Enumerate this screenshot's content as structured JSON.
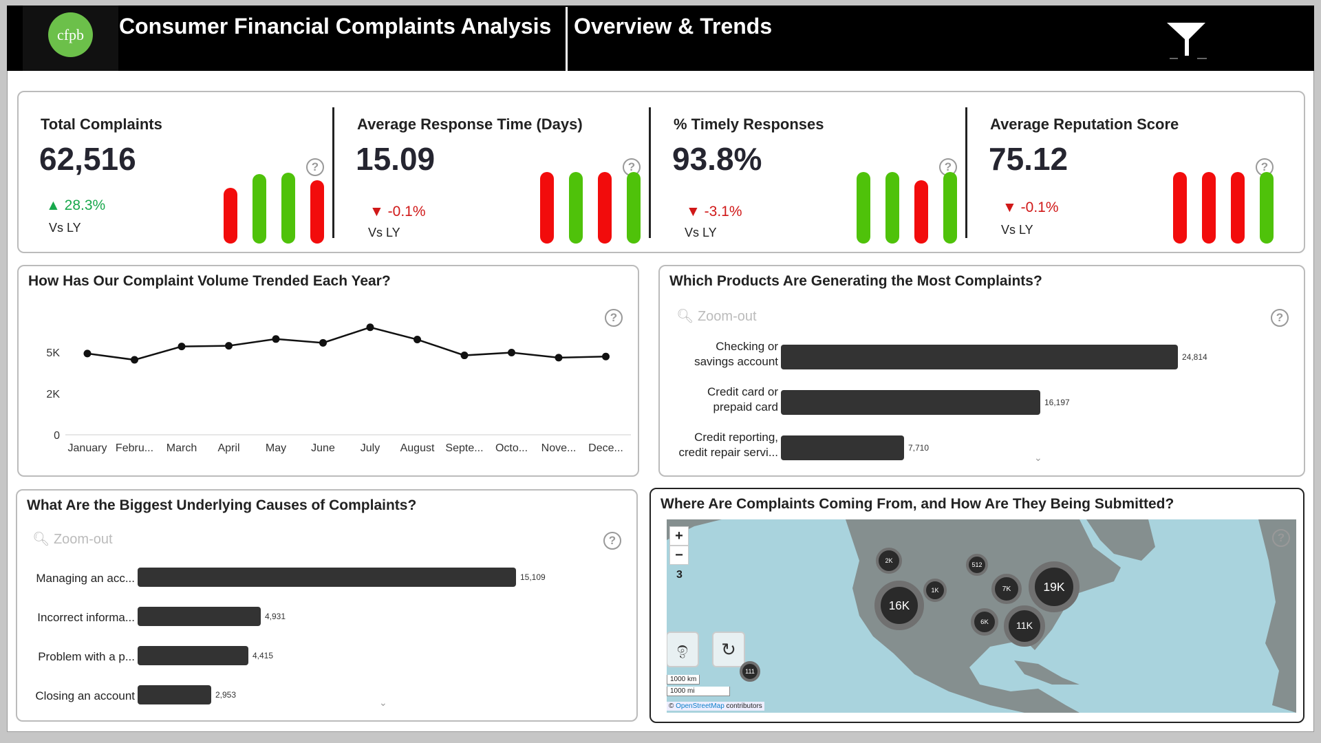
{
  "header": {
    "logo_text": "cfpb",
    "title": "Consumer Financial Complaints Analysis",
    "page": "Overview & Trends",
    "filter_icon": "funnel-icon"
  },
  "kpis": [
    {
      "title": "Total Complaints",
      "value": "62,516",
      "delta": "28.3%",
      "direction": "up",
      "compare": "Vs LY",
      "bars": [
        {
          "level": 0.72,
          "status": "red"
        },
        {
          "level": 0.9,
          "status": "green"
        },
        {
          "level": 0.92,
          "status": "green"
        },
        {
          "level": 0.82,
          "status": "red"
        }
      ]
    },
    {
      "title": "Average Response Time (Days)",
      "value": "15.09",
      "delta": "-0.1%",
      "direction": "down",
      "compare": "Vs LY",
      "bars": [
        {
          "level": 0.93,
          "status": "red"
        },
        {
          "level": 0.93,
          "status": "green"
        },
        {
          "level": 0.93,
          "status": "red"
        },
        {
          "level": 0.93,
          "status": "green"
        }
      ]
    },
    {
      "title": "% Timely Responses",
      "value": "93.8%",
      "delta": "-3.1%",
      "direction": "down",
      "compare": "Vs LY",
      "bars": [
        {
          "level": 0.93,
          "status": "green"
        },
        {
          "level": 0.93,
          "status": "green"
        },
        {
          "level": 0.82,
          "status": "red"
        },
        {
          "level": 0.93,
          "status": "green"
        }
      ]
    },
    {
      "title": "Average Reputation Score",
      "value": "75.12",
      "delta": "-0.1%",
      "direction": "down",
      "compare": "Vs LY",
      "bars": [
        {
          "level": 0.93,
          "status": "red"
        },
        {
          "level": 0.93,
          "status": "red"
        },
        {
          "level": 0.93,
          "status": "red"
        },
        {
          "level": 0.93,
          "status": "green"
        }
      ]
    }
  ],
  "colors": {
    "red": "#f20c0c",
    "green": "#4fc20a",
    "up": "#18a84c",
    "down": "#c00000",
    "bar": "#333333",
    "map_water": "#a9d3dd",
    "map_land": "#858f8f"
  },
  "trend": {
    "title": "How Has Our Complaint Volume Trended Each Year?"
  },
  "chart_data": [
    {
      "type": "line",
      "title": "How Has Our Complaint Volume Trended Each Year?",
      "categories": [
        "January",
        "Febru...",
        "March",
        "April",
        "May",
        "June",
        "July",
        "August",
        "Septe...",
        "Octo...",
        "Nove...",
        "Dece..."
      ],
      "values": [
        4920,
        4540,
        5350,
        5390,
        5800,
        5570,
        6510,
        5770,
        4810,
        4980,
        4670,
        4740
      ],
      "yticks": [
        {
          "v": 0,
          "label": "0"
        },
        {
          "v": 2500,
          "label": "2K"
        },
        {
          "v": 5000,
          "label": "5K"
        },
        {
          "v": 7500,
          "label": ""
        }
      ],
      "ylim": [
        0,
        7500
      ],
      "grid": false
    },
    {
      "type": "bar",
      "title": "Which Products Are Generating the Most Complaints?",
      "categories": [
        "Checking or savings account",
        "Credit card or prepaid card",
        "Credit reporting, credit repair servi..."
      ],
      "values": [
        24814,
        16197,
        7710
      ],
      "labels": [
        "24,814",
        "16,197",
        "7,710"
      ]
    },
    {
      "type": "bar",
      "title": "What Are the Biggest Underlying Causes of Complaints?",
      "categories": [
        "Managing an acc...",
        "Incorrect informa...",
        "Problem with a p...",
        "Closing an account"
      ],
      "values": [
        15109,
        4931,
        4415,
        2953
      ],
      "labels": [
        "15,109",
        "4,931",
        "4,415",
        "2,953"
      ]
    }
  ],
  "products": {
    "title": "Which Products Are Generating the Most Complaints?",
    "zoom_label": "Zoom-out",
    "lines": [
      [
        "Checking or",
        "savings account"
      ],
      [
        "Credit card or",
        "prepaid card"
      ],
      [
        "Credit reporting,",
        "credit repair servi..."
      ]
    ]
  },
  "causes": {
    "title": "What Are the Biggest Underlying Causes of Complaints?",
    "zoom_label": "Zoom-out"
  },
  "map": {
    "title": "Where Are Complaints Coming From, and How Are They Being Submitted?",
    "zoom_in": "+",
    "zoom_out": "−",
    "zoom_level": "3",
    "scale_km": "1000 km",
    "scale_mi": "1000 mi",
    "attribution_prefix": "©",
    "attribution_link": "OpenStreetMap",
    "attribution_suffix": "contributors",
    "clusters": [
      "2K",
      "1K",
      "16K",
      "512",
      "7K",
      "19K",
      "6K",
      "11K",
      "111"
    ]
  },
  "help_label": "?"
}
